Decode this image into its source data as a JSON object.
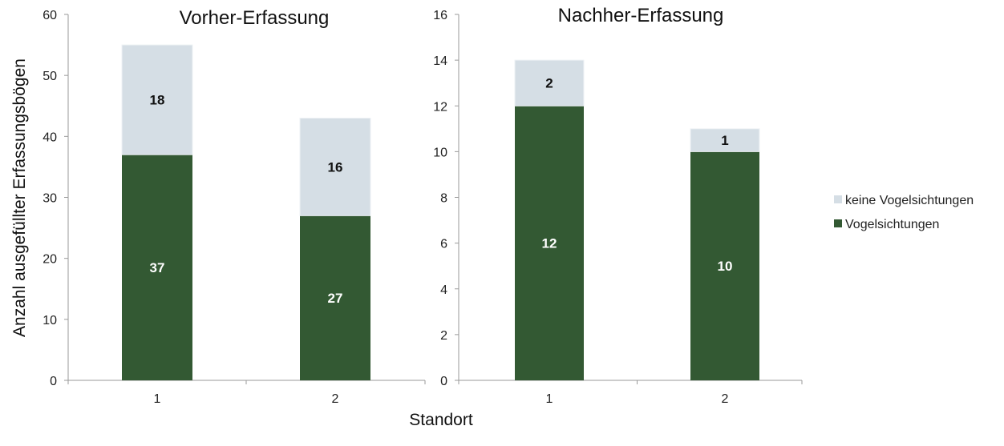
{
  "chart_data": [
    {
      "type": "bar",
      "stacked": true,
      "title": "Vorher-Erfassung",
      "categories": [
        "1",
        "2"
      ],
      "ylim": [
        0,
        60
      ],
      "yticks": [
        "0",
        "10",
        "20",
        "30",
        "40",
        "50",
        "60"
      ],
      "series": [
        {
          "name": "Vogelsichtungen",
          "values": [
            37,
            27
          ],
          "color": "#335933"
        },
        {
          "name": "keine Vogelsichtungen",
          "values": [
            18,
            16
          ],
          "color": "#d5dee5"
        }
      ],
      "grid": false
    },
    {
      "type": "bar",
      "stacked": true,
      "title": "Nachher-Erfassung",
      "categories": [
        "1",
        "2"
      ],
      "ylim": [
        0,
        16
      ],
      "yticks": [
        "0",
        "2",
        "4",
        "6",
        "8",
        "10",
        "12",
        "14",
        "16"
      ],
      "series": [
        {
          "name": "Vogelsichtungen",
          "values": [
            12,
            10
          ],
          "color": "#335933"
        },
        {
          "name": "keine Vogelsichtungen",
          "values": [
            2,
            1
          ],
          "color": "#d5dee5"
        }
      ],
      "grid": false
    }
  ],
  "ylabel": "Anzahl ausgefüllter Erfassungsbögen",
  "xlabel": "Standort",
  "legend": {
    "placement": "right",
    "items": [
      {
        "label": "keine Vogelsichtungen",
        "color": "#d5dee5"
      },
      {
        "label": "Vogelsichtungen",
        "color": "#335933"
      }
    ]
  }
}
